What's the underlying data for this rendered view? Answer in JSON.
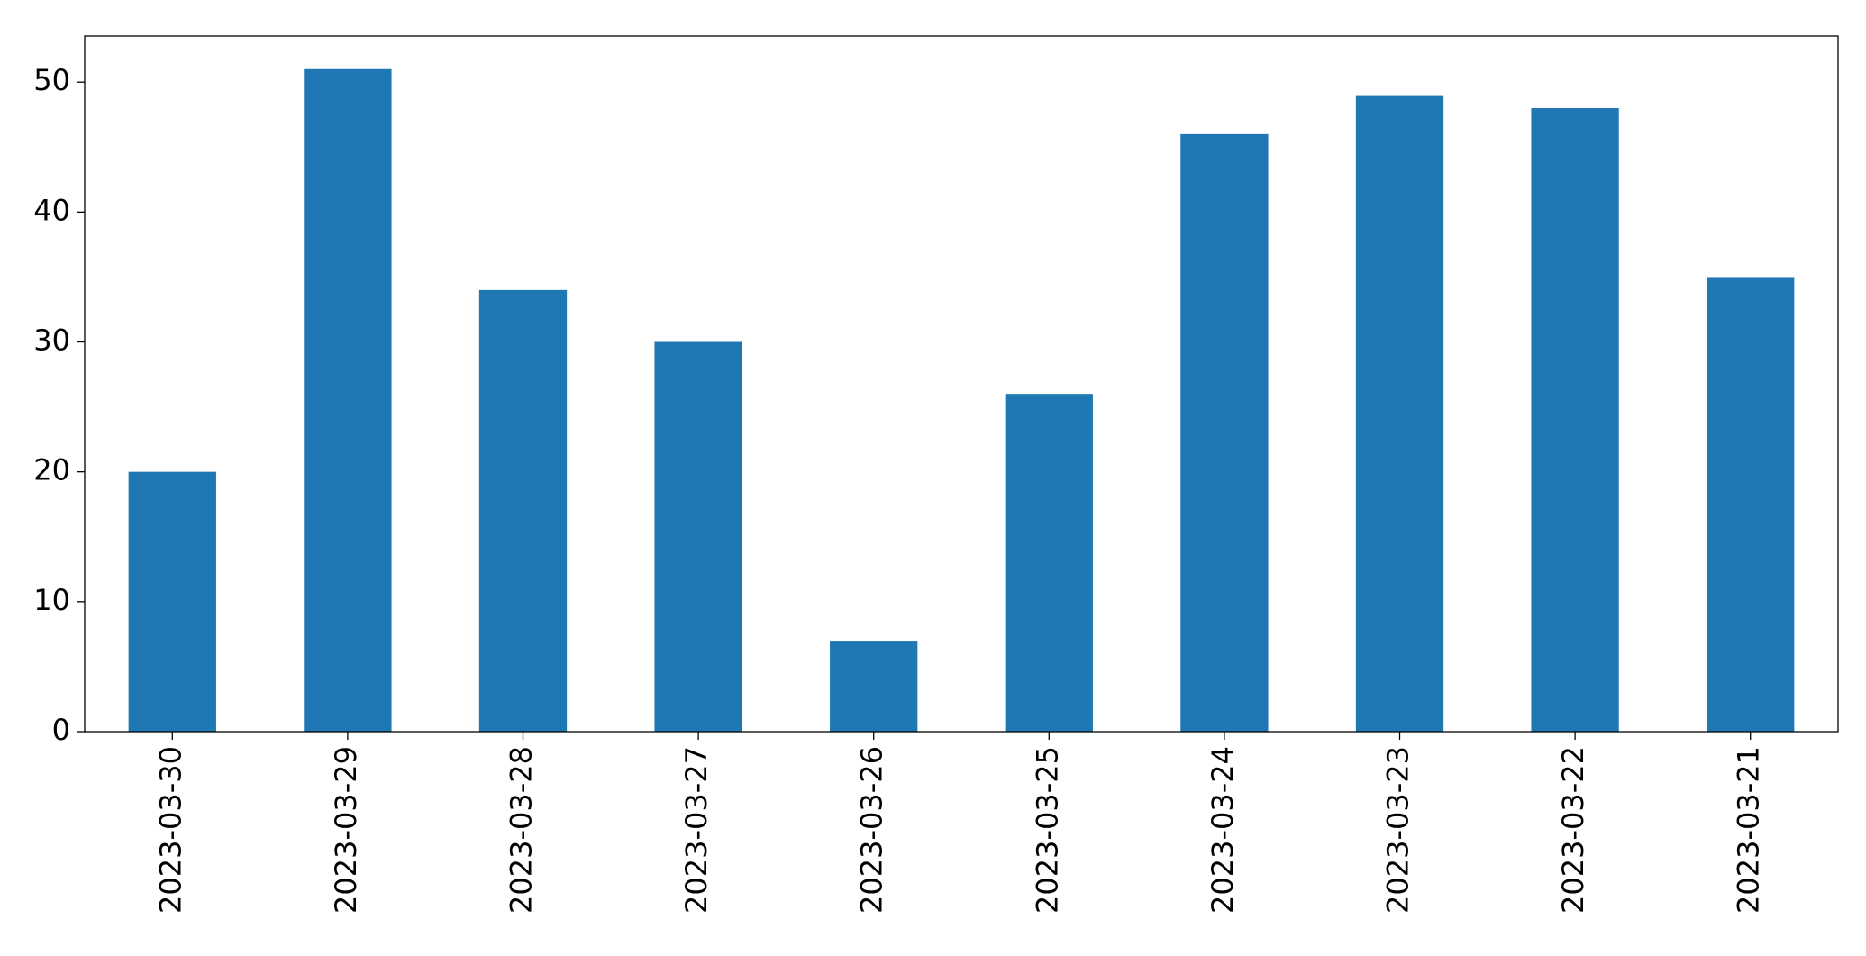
{
  "chart_data": {
    "type": "bar",
    "categories": [
      "2023-03-30",
      "2023-03-29",
      "2023-03-28",
      "2023-03-27",
      "2023-03-26",
      "2023-03-25",
      "2023-03-24",
      "2023-03-23",
      "2023-03-22",
      "2023-03-21"
    ],
    "values": [
      20,
      51,
      34,
      30,
      7,
      26,
      46,
      49,
      48,
      35
    ],
    "color": "#1f77b4",
    "ylim": [
      0,
      53.55
    ],
    "yticks": [
      0,
      10,
      20,
      30,
      40,
      50
    ],
    "grid": false
  }
}
